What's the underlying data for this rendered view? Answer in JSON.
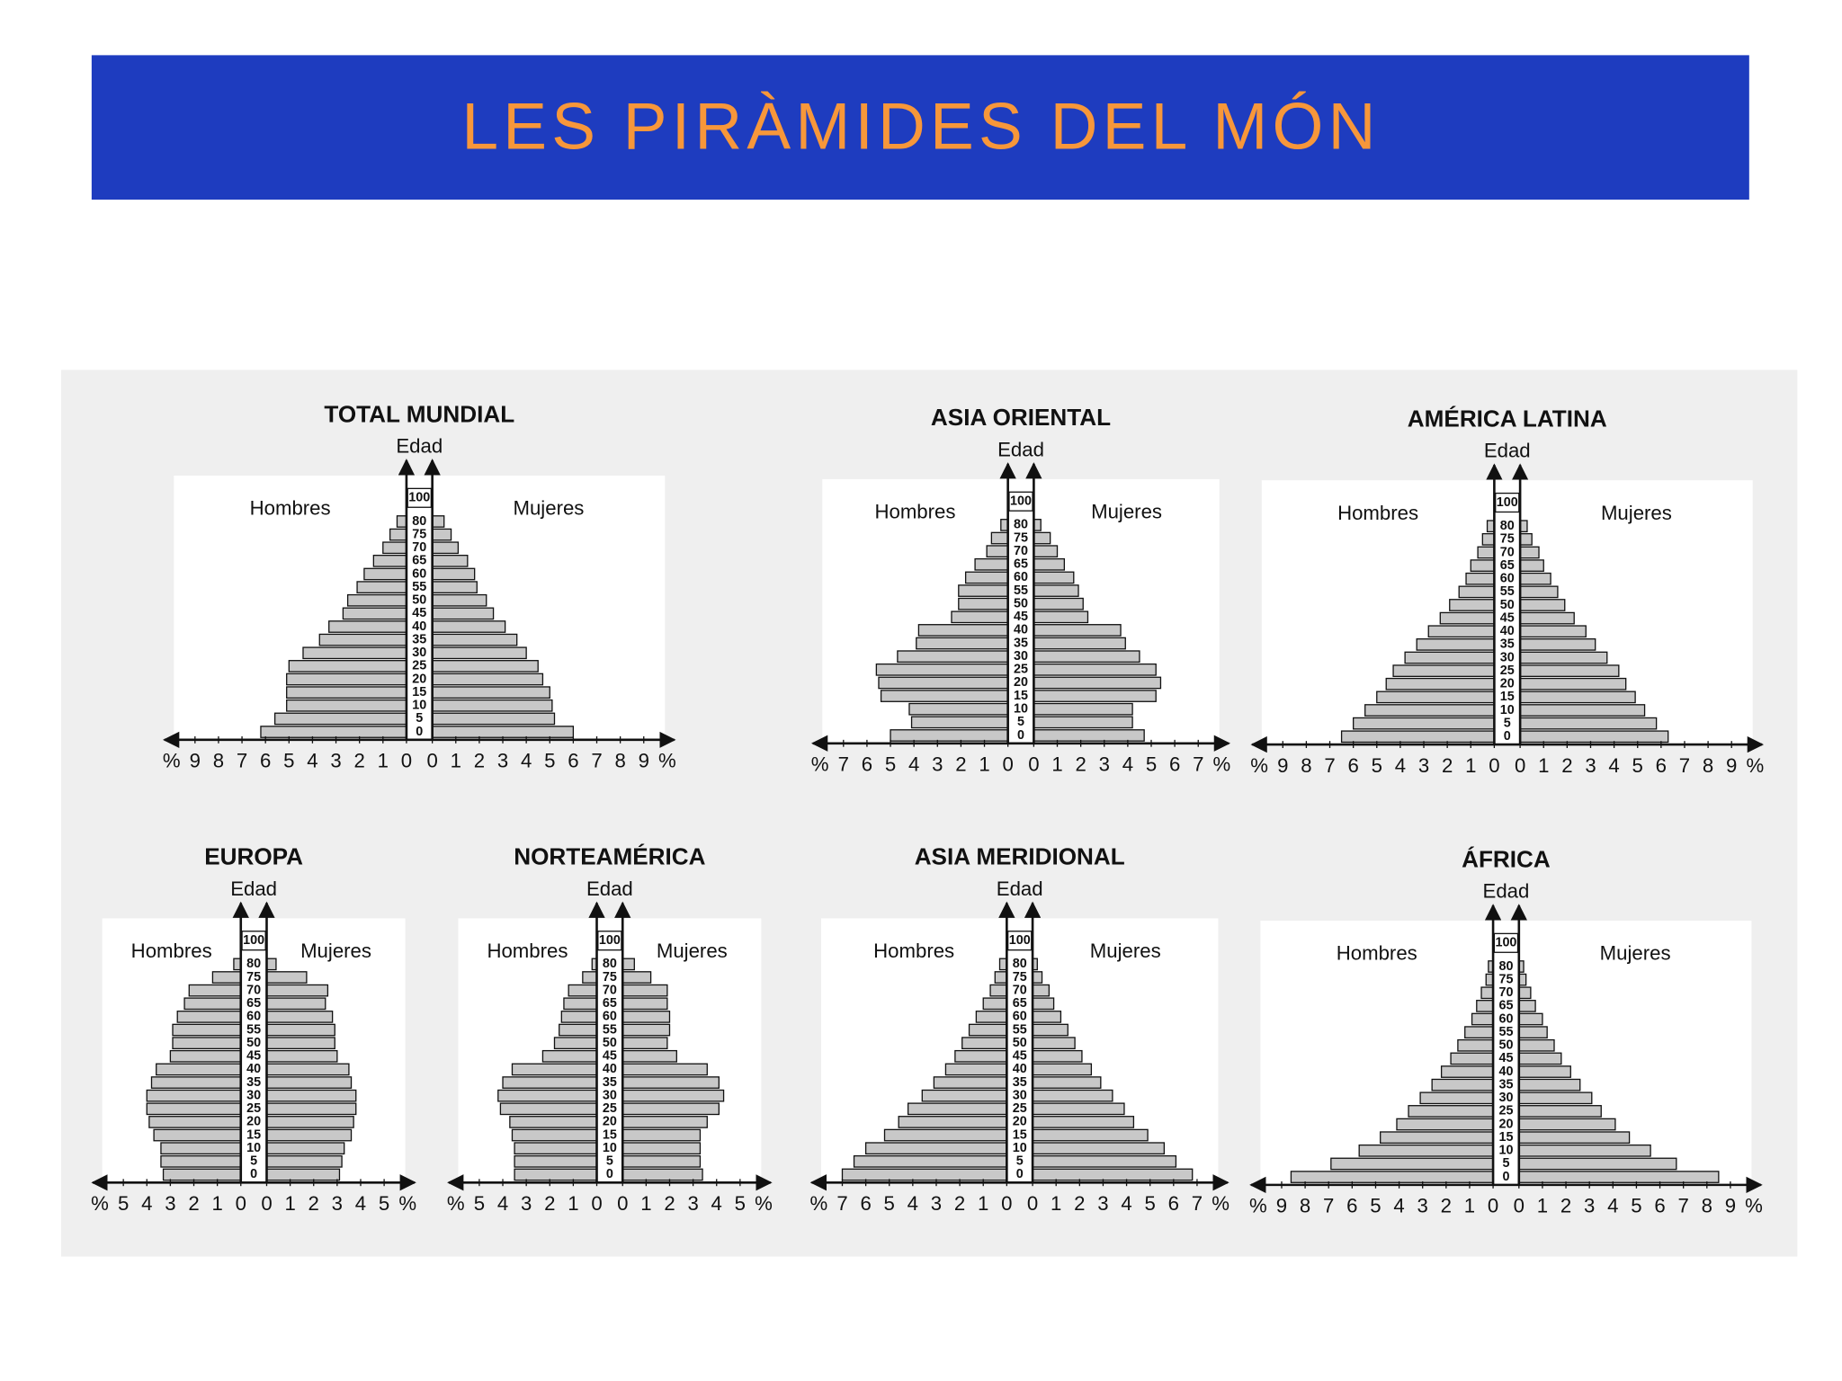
{
  "title": "LES PIRÀMIDES DEL MÓN",
  "chart_data": [
    {
      "type": "pyramid",
      "title": "TOTAL MUNDIAL",
      "ylabel": "Edad",
      "xlabel": "%",
      "age_top": 100,
      "categories": [
        0,
        5,
        10,
        15,
        20,
        25,
        30,
        35,
        40,
        45,
        50,
        55,
        60,
        65,
        70,
        75,
        80
      ],
      "xlim": [
        0,
        9
      ],
      "xticks": [
        0,
        1,
        2,
        3,
        4,
        5,
        6,
        7,
        8,
        9
      ],
      "series": [
        {
          "name": "Hombres",
          "color": "#c8c8c8",
          "values": [
            6.2,
            5.6,
            5.1,
            5.1,
            5.1,
            5.0,
            4.4,
            3.7,
            3.3,
            2.7,
            2.5,
            2.1,
            1.8,
            1.4,
            1.0,
            0.7,
            0.4
          ]
        },
        {
          "name": "Mujeres",
          "color": "#c8c8c8",
          "values": [
            6.0,
            5.2,
            5.1,
            5.0,
            4.7,
            4.5,
            4.0,
            3.6,
            3.1,
            2.6,
            2.3,
            1.9,
            1.8,
            1.5,
            1.1,
            0.8,
            0.5
          ]
        }
      ]
    },
    {
      "type": "pyramid",
      "title": "ASIA ORIENTAL",
      "ylabel": "Edad",
      "xlabel": "%",
      "age_top": 100,
      "categories": [
        0,
        5,
        10,
        15,
        20,
        25,
        30,
        35,
        40,
        45,
        50,
        55,
        60,
        65,
        70,
        75,
        80
      ],
      "xlim": [
        0,
        7
      ],
      "xticks": [
        0,
        1,
        2,
        3,
        4,
        5,
        6,
        7
      ],
      "series": [
        {
          "name": "Hombres",
          "color": "#c8c8c8",
          "values": [
            5.0,
            4.1,
            4.2,
            5.4,
            5.5,
            5.6,
            4.7,
            3.9,
            3.8,
            2.4,
            2.1,
            2.1,
            1.8,
            1.4,
            0.9,
            0.7,
            0.3
          ]
        },
        {
          "name": "Mujeres",
          "color": "#c8c8c8",
          "values": [
            4.7,
            4.2,
            4.2,
            5.2,
            5.4,
            5.2,
            4.5,
            3.9,
            3.7,
            2.3,
            2.1,
            1.9,
            1.7,
            1.3,
            1.0,
            0.7,
            0.3
          ]
        }
      ]
    },
    {
      "type": "pyramid",
      "title": "AMÉRICA LATINA",
      "ylabel": "Edad",
      "xlabel": "%",
      "age_top": 100,
      "categories": [
        0,
        5,
        10,
        15,
        20,
        25,
        30,
        35,
        40,
        45,
        50,
        55,
        60,
        65,
        70,
        75,
        80
      ],
      "xlim": [
        0,
        9
      ],
      "xticks": [
        0,
        1,
        2,
        3,
        4,
        5,
        6,
        7,
        8,
        9
      ],
      "series": [
        {
          "name": "Hombres",
          "color": "#c8c8c8",
          "values": [
            6.5,
            6.0,
            5.5,
            5.0,
            4.6,
            4.3,
            3.8,
            3.3,
            2.8,
            2.3,
            1.9,
            1.5,
            1.2,
            1.0,
            0.7,
            0.5,
            0.3
          ]
        },
        {
          "name": "Mujeres",
          "color": "#c8c8c8",
          "values": [
            6.3,
            5.8,
            5.3,
            4.9,
            4.5,
            4.2,
            3.7,
            3.2,
            2.8,
            2.3,
            1.9,
            1.6,
            1.3,
            1.0,
            0.8,
            0.5,
            0.3
          ]
        }
      ]
    },
    {
      "type": "pyramid",
      "title": "EUROPA",
      "ylabel": "Edad",
      "xlabel": "%",
      "age_top": 100,
      "categories": [
        0,
        5,
        10,
        15,
        20,
        25,
        30,
        35,
        40,
        45,
        50,
        55,
        60,
        65,
        70,
        75,
        80
      ],
      "xlim": [
        0,
        5
      ],
      "xticks": [
        0,
        1,
        2,
        3,
        4,
        5
      ],
      "series": [
        {
          "name": "Hombres",
          "color": "#c8c8c8",
          "values": [
            3.3,
            3.4,
            3.4,
            3.7,
            3.9,
            4.0,
            4.0,
            3.8,
            3.6,
            3.0,
            2.9,
            2.9,
            2.7,
            2.4,
            2.2,
            1.2,
            0.3
          ]
        },
        {
          "name": "Mujeres",
          "color": "#c8c8c8",
          "values": [
            3.1,
            3.2,
            3.3,
            3.6,
            3.7,
            3.8,
            3.8,
            3.6,
            3.5,
            3.0,
            2.9,
            2.9,
            2.8,
            2.5,
            2.6,
            1.7,
            0.4
          ]
        }
      ]
    },
    {
      "type": "pyramid",
      "title": "NORTEAMÉRICA",
      "ylabel": "Edad",
      "xlabel": "%",
      "age_top": 100,
      "categories": [
        0,
        5,
        10,
        15,
        20,
        25,
        30,
        35,
        40,
        45,
        50,
        55,
        60,
        65,
        70,
        75,
        80
      ],
      "xlim": [
        0,
        5
      ],
      "xticks": [
        0,
        1,
        2,
        3,
        4,
        5
      ],
      "series": [
        {
          "name": "Hombres",
          "color": "#c8c8c8",
          "values": [
            3.5,
            3.5,
            3.5,
            3.6,
            3.7,
            4.1,
            4.2,
            4.0,
            3.6,
            2.3,
            1.8,
            1.6,
            1.5,
            1.4,
            1.2,
            0.6,
            0.2
          ]
        },
        {
          "name": "Mujeres",
          "color": "#c8c8c8",
          "values": [
            3.4,
            3.3,
            3.3,
            3.3,
            3.6,
            4.1,
            4.3,
            4.1,
            3.6,
            2.3,
            1.9,
            2.0,
            2.0,
            1.9,
            1.9,
            1.2,
            0.5
          ]
        }
      ]
    },
    {
      "type": "pyramid",
      "title": "ASIA MERIDIONAL",
      "ylabel": "Edad",
      "xlabel": "%",
      "age_top": 100,
      "categories": [
        0,
        5,
        10,
        15,
        20,
        25,
        30,
        35,
        40,
        45,
        50,
        55,
        60,
        65,
        70,
        75,
        80
      ],
      "xlim": [
        0,
        7
      ],
      "xticks": [
        0,
        1,
        2,
        3,
        4,
        5,
        6,
        7
      ],
      "series": [
        {
          "name": "Hombres",
          "color": "#c8c8c8",
          "values": [
            7.0,
            6.5,
            6.0,
            5.2,
            4.6,
            4.2,
            3.6,
            3.1,
            2.6,
            2.2,
            1.9,
            1.6,
            1.3,
            1.0,
            0.7,
            0.5,
            0.3
          ]
        },
        {
          "name": "Mujeres",
          "color": "#c8c8c8",
          "values": [
            6.8,
            6.1,
            5.6,
            4.9,
            4.3,
            3.9,
            3.4,
            2.9,
            2.5,
            2.1,
            1.8,
            1.5,
            1.2,
            0.9,
            0.7,
            0.4,
            0.2
          ]
        }
      ]
    },
    {
      "type": "pyramid",
      "title": "ÁFRICA",
      "ylabel": "Edad",
      "xlabel": "%",
      "age_top": 100,
      "categories": [
        0,
        5,
        10,
        15,
        20,
        25,
        30,
        35,
        40,
        45,
        50,
        55,
        60,
        65,
        70,
        75,
        80
      ],
      "xlim": [
        0,
        9
      ],
      "xticks": [
        0,
        1,
        2,
        3,
        4,
        5,
        6,
        7,
        8,
        9
      ],
      "series": [
        {
          "name": "Hombres",
          "color": "#c8c8c8",
          "values": [
            8.6,
            6.9,
            5.7,
            4.8,
            4.1,
            3.6,
            3.1,
            2.6,
            2.2,
            1.8,
            1.5,
            1.2,
            0.9,
            0.7,
            0.5,
            0.3,
            0.2
          ]
        },
        {
          "name": "Mujeres",
          "color": "#c8c8c8",
          "values": [
            8.5,
            6.7,
            5.6,
            4.7,
            4.1,
            3.5,
            3.1,
            2.6,
            2.2,
            1.8,
            1.5,
            1.2,
            1.0,
            0.7,
            0.5,
            0.3,
            0.2
          ]
        }
      ]
    }
  ]
}
